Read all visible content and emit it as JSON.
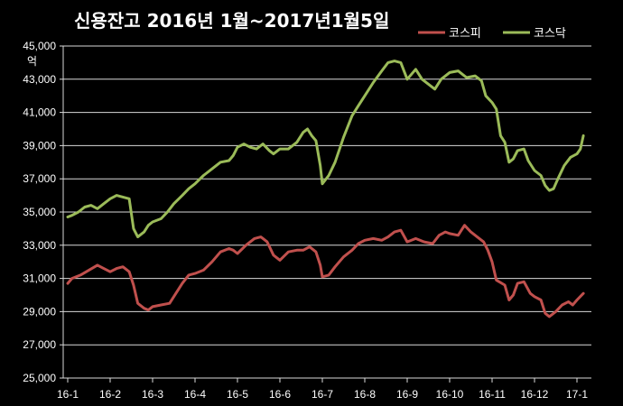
{
  "chart_data": {
    "type": "line",
    "title": "신용잔고 2016년 1월~2017년1월5일",
    "ylabel": "억",
    "xlabel": "",
    "ylim": [
      25000,
      45000
    ],
    "yticks": [
      "25,000",
      "27,000",
      "29,000",
      "31,000",
      "33,000",
      "35,000",
      "37,000",
      "39,000",
      "41,000",
      "43,000",
      "45,000"
    ],
    "xticks": [
      "16-1",
      "16-2",
      "16-3",
      "16-4",
      "16-5",
      "16-6",
      "16-7",
      "16-8",
      "16-9",
      "16-10",
      "16-11",
      "16-12",
      "17-1"
    ],
    "grid": true,
    "legend_position": "top-right",
    "series": [
      {
        "name": "코스피",
        "color": "#C0504D",
        "points": [
          [
            "16-1",
            30700
          ],
          [
            0.1,
            31000
          ],
          [
            0.3,
            31200
          ],
          [
            0.5,
            31500
          ],
          [
            0.7,
            31800
          ],
          [
            0.85,
            31600
          ],
          [
            "16-2",
            31400
          ],
          [
            0.15,
            31600
          ],
          [
            0.3,
            31700
          ],
          [
            0.45,
            31400
          ],
          [
            0.55,
            30600
          ],
          [
            0.65,
            29500
          ],
          [
            0.8,
            29200
          ],
          [
            0.9,
            29100
          ],
          [
            "16-3",
            29300
          ],
          [
            0.2,
            29400
          ],
          [
            0.4,
            29500
          ],
          [
            0.55,
            30100
          ],
          [
            0.7,
            30700
          ],
          [
            0.85,
            31200
          ],
          [
            "16-4",
            31300
          ],
          [
            0.2,
            31500
          ],
          [
            0.4,
            32000
          ],
          [
            0.6,
            32600
          ],
          [
            0.8,
            32800
          ],
          [
            0.9,
            32700
          ],
          [
            "16-5",
            32500
          ],
          [
            0.2,
            33000
          ],
          [
            0.4,
            33400
          ],
          [
            0.55,
            33500
          ],
          [
            0.7,
            33200
          ],
          [
            0.85,
            32400
          ],
          [
            "16-6",
            32100
          ],
          [
            0.2,
            32600
          ],
          [
            0.4,
            32700
          ],
          [
            0.55,
            32700
          ],
          [
            0.7,
            32900
          ],
          [
            0.85,
            32600
          ],
          [
            0.95,
            31800
          ],
          [
            "16-7",
            31100
          ],
          [
            0.15,
            31200
          ],
          [
            0.3,
            31700
          ],
          [
            0.5,
            32300
          ],
          [
            0.7,
            32700
          ],
          [
            0.85,
            33100
          ],
          [
            "16-8",
            33300
          ],
          [
            0.2,
            33400
          ],
          [
            0.4,
            33300
          ],
          [
            0.55,
            33500
          ],
          [
            0.7,
            33800
          ],
          [
            0.85,
            33900
          ],
          [
            "16-9",
            33200
          ],
          [
            0.2,
            33400
          ],
          [
            0.4,
            33200
          ],
          [
            0.6,
            33100
          ],
          [
            0.75,
            33600
          ],
          [
            0.9,
            33800
          ],
          [
            "16-10",
            33700
          ],
          [
            0.2,
            33600
          ],
          [
            0.35,
            34200
          ],
          [
            0.5,
            33800
          ],
          [
            0.65,
            33500
          ],
          [
            0.8,
            33200
          ],
          [
            0.9,
            32700
          ],
          [
            "16-11",
            32000
          ],
          [
            0.1,
            30900
          ],
          [
            0.3,
            30600
          ],
          [
            0.4,
            29700
          ],
          [
            0.5,
            30000
          ],
          [
            0.6,
            30700
          ],
          [
            0.75,
            30800
          ],
          [
            0.9,
            30100
          ],
          [
            "16-12",
            29900
          ],
          [
            0.15,
            29700
          ],
          [
            0.25,
            28900
          ],
          [
            0.35,
            28700
          ],
          [
            0.5,
            29000
          ],
          [
            0.65,
            29400
          ],
          [
            0.8,
            29600
          ],
          [
            0.9,
            29400
          ],
          [
            "17-1",
            29700
          ],
          [
            0.15,
            30100
          ]
        ]
      },
      {
        "name": "코스닥",
        "color": "#9BBB59",
        "points": [
          [
            "16-1",
            34700
          ],
          [
            0.1,
            34800
          ],
          [
            0.25,
            35000
          ],
          [
            0.4,
            35300
          ],
          [
            0.55,
            35400
          ],
          [
            0.7,
            35200
          ],
          [
            0.85,
            35500
          ],
          [
            "16-2",
            35800
          ],
          [
            0.15,
            36000
          ],
          [
            0.3,
            35900
          ],
          [
            0.45,
            35800
          ],
          [
            0.55,
            34000
          ],
          [
            0.65,
            33500
          ],
          [
            0.8,
            33800
          ],
          [
            0.9,
            34200
          ],
          [
            "16-3",
            34400
          ],
          [
            0.2,
            34600
          ],
          [
            0.35,
            35000
          ],
          [
            0.5,
            35500
          ],
          [
            0.7,
            36000
          ],
          [
            0.85,
            36400
          ],
          [
            "16-4",
            36700
          ],
          [
            0.2,
            37200
          ],
          [
            0.4,
            37600
          ],
          [
            0.6,
            38000
          ],
          [
            0.8,
            38100
          ],
          [
            0.9,
            38400
          ],
          [
            "16-5",
            38900
          ],
          [
            0.15,
            39100
          ],
          [
            0.3,
            38900
          ],
          [
            0.45,
            38800
          ],
          [
            0.6,
            39100
          ],
          [
            0.75,
            38700
          ],
          [
            0.85,
            38500
          ],
          [
            "16-6",
            38800
          ],
          [
            0.2,
            38800
          ],
          [
            0.4,
            39200
          ],
          [
            0.55,
            39800
          ],
          [
            0.65,
            40000
          ],
          [
            0.75,
            39600
          ],
          [
            0.85,
            39300
          ],
          [
            0.95,
            37800
          ],
          [
            "16-7",
            36700
          ],
          [
            0.15,
            37200
          ],
          [
            0.3,
            38000
          ],
          [
            0.5,
            39500
          ],
          [
            0.7,
            40800
          ],
          [
            0.85,
            41400
          ],
          [
            "16-8",
            42000
          ],
          [
            0.2,
            42800
          ],
          [
            0.4,
            43500
          ],
          [
            0.55,
            44000
          ],
          [
            0.7,
            44100
          ],
          [
            0.85,
            44000
          ],
          [
            "16-9",
            43000
          ],
          [
            0.2,
            43600
          ],
          [
            0.35,
            43000
          ],
          [
            0.5,
            42700
          ],
          [
            0.65,
            42400
          ],
          [
            0.8,
            43000
          ],
          [
            0.95,
            43300
          ],
          [
            "16-10",
            43400
          ],
          [
            0.2,
            43500
          ],
          [
            0.4,
            43100
          ],
          [
            0.6,
            43200
          ],
          [
            0.75,
            42900
          ],
          [
            0.85,
            42000
          ],
          [
            "16-11",
            41600
          ],
          [
            0.1,
            41200
          ],
          [
            0.2,
            39600
          ],
          [
            0.3,
            39200
          ],
          [
            0.4,
            38000
          ],
          [
            0.5,
            38200
          ],
          [
            0.6,
            38700
          ],
          [
            0.75,
            38800
          ],
          [
            0.85,
            38100
          ],
          [
            "16-12",
            37500
          ],
          [
            0.15,
            37200
          ],
          [
            0.25,
            36600
          ],
          [
            0.35,
            36300
          ],
          [
            0.45,
            36400
          ],
          [
            0.55,
            37000
          ],
          [
            0.7,
            37800
          ],
          [
            0.85,
            38300
          ],
          [
            "17-1",
            38500
          ],
          [
            0.08,
            38800
          ],
          [
            0.15,
            39600
          ]
        ]
      }
    ]
  }
}
